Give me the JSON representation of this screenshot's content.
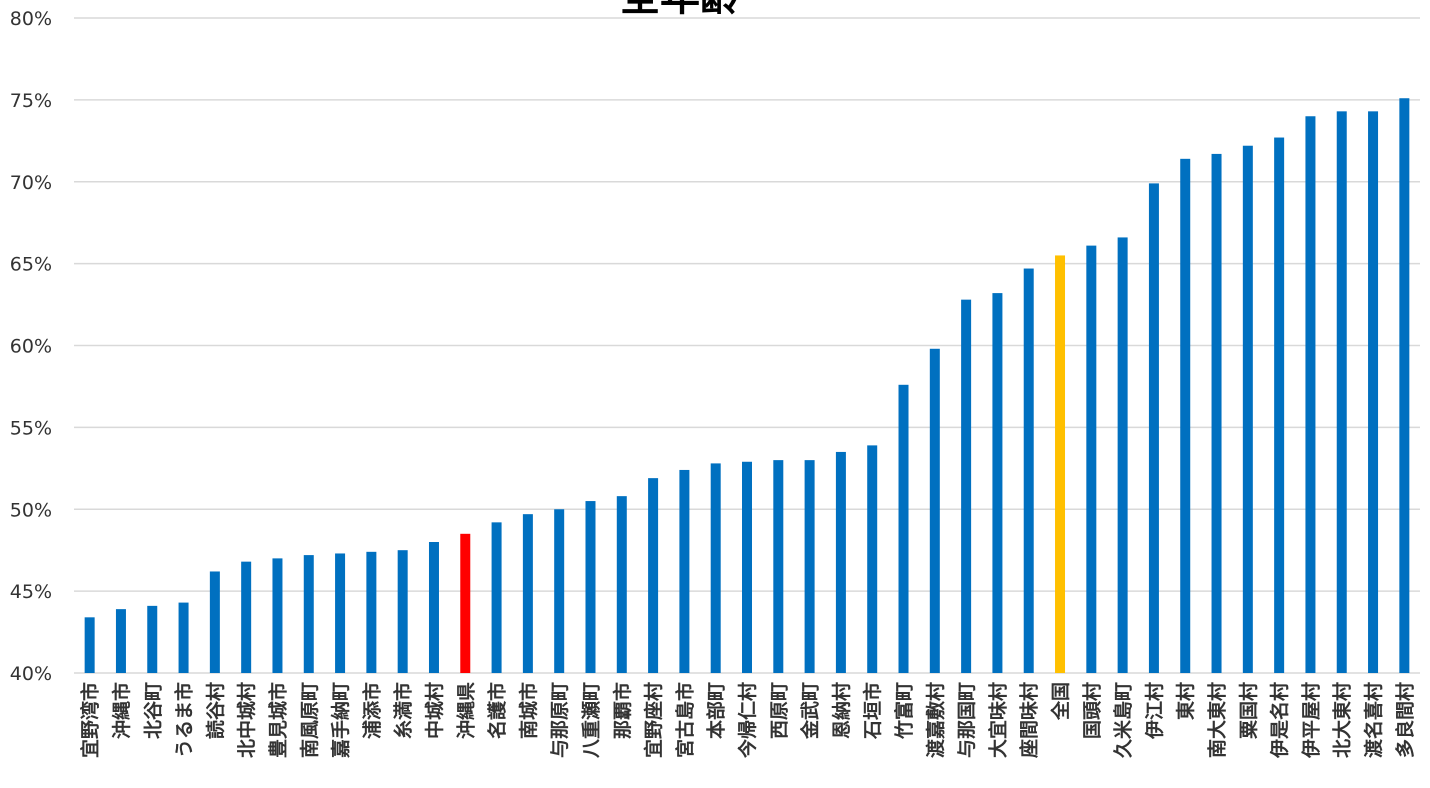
{
  "chart_data": {
    "type": "bar",
    "title": "全年齢",
    "xlabel": "",
    "ylabel": "",
    "ylim": [
      0.4,
      0.8
    ],
    "yticks": [
      0.4,
      0.45,
      0.5,
      0.55,
      0.6,
      0.65,
      0.7,
      0.75,
      0.8
    ],
    "ytick_labels": [
      "40%",
      "45%",
      "50%",
      "55%",
      "60%",
      "65%",
      "70%",
      "75%",
      "80%"
    ],
    "grid": true,
    "legend": "none",
    "colors": {
      "default": "#0070C0",
      "okinawa": "#FF0000",
      "national": "#FFC000"
    },
    "categories": [
      "宜野湾市",
      "沖縄市",
      "北谷町",
      "うるま市",
      "読谷村",
      "北中城村",
      "豊見城市",
      "南風原町",
      "嘉手納町",
      "浦添市",
      "糸満市",
      "中城村",
      "沖縄県",
      "名護市",
      "南城市",
      "与那原町",
      "八重瀬町",
      "那覇市",
      "宜野座村",
      "宮古島市",
      "本部町",
      "今帰仁村",
      "西原町",
      "金武町",
      "恩納村",
      "石垣市",
      "竹富町",
      "渡嘉敷村",
      "与那国町",
      "大宜味村",
      "座間味村",
      "全国",
      "国頭村",
      "久米島町",
      "伊江村",
      "東村",
      "南大東村",
      "粟国村",
      "伊是名村",
      "伊平屋村",
      "北大東村",
      "渡名喜村",
      "多良間村"
    ],
    "values": [
      0.434,
      0.439,
      0.441,
      0.443,
      0.462,
      0.468,
      0.47,
      0.472,
      0.473,
      0.474,
      0.475,
      0.48,
      0.485,
      0.492,
      0.497,
      0.5,
      0.505,
      0.508,
      0.519,
      0.524,
      0.528,
      0.529,
      0.53,
      0.53,
      0.535,
      0.539,
      0.576,
      0.598,
      0.628,
      0.632,
      0.647,
      0.655,
      0.661,
      0.666,
      0.699,
      0.714,
      0.717,
      0.722,
      0.727,
      0.74,
      0.743,
      0.743,
      0.751
    ],
    "highlight": {
      "沖縄県": "okinawa",
      "全国": "national"
    }
  }
}
